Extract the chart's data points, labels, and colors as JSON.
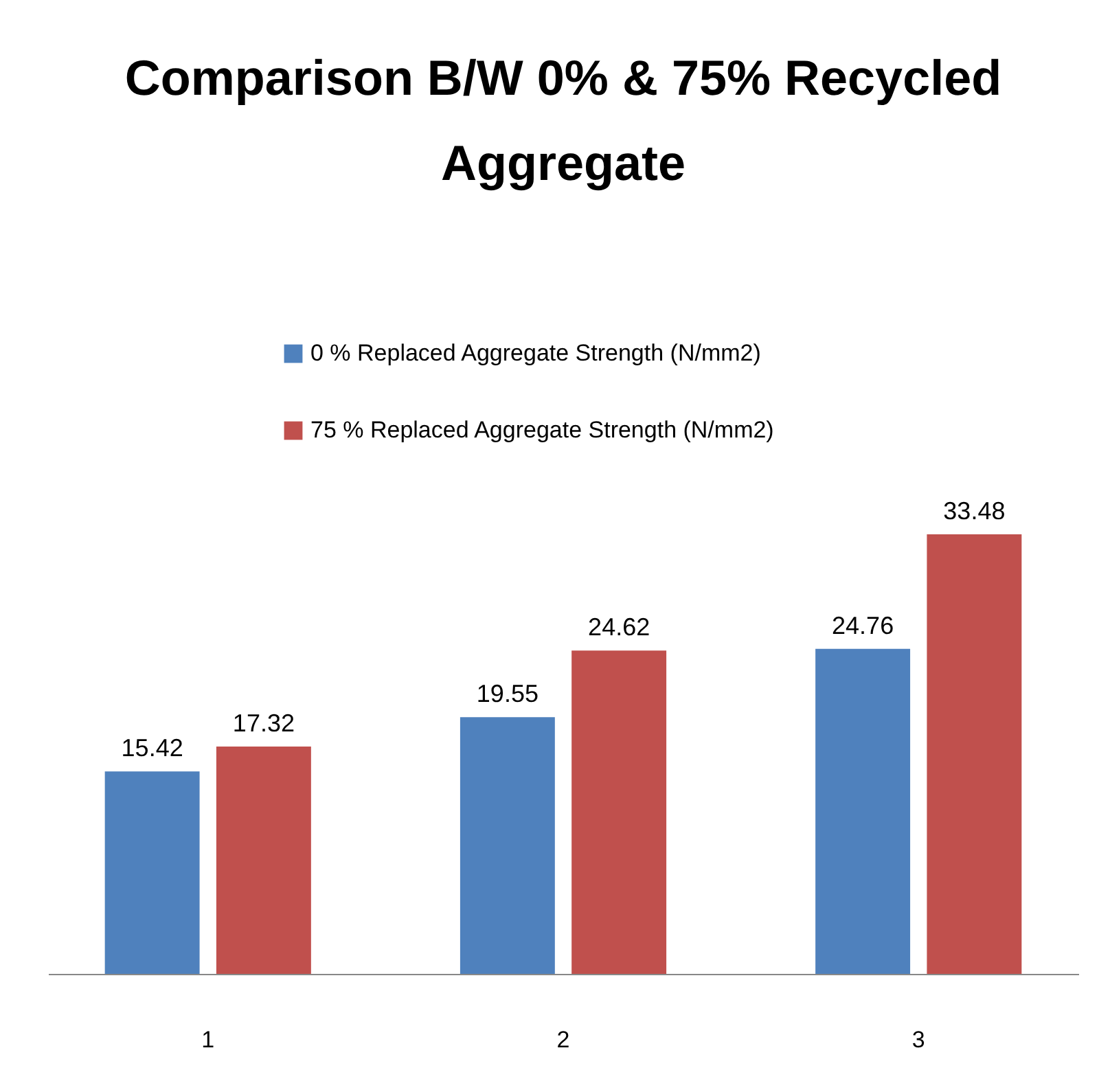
{
  "chart_data": {
    "type": "bar",
    "title": "Comparison B/W 0% & 75% Recycled Aggregate",
    "categories": [
      "1",
      "2",
      "3"
    ],
    "series": [
      {
        "name": "0 % Replaced Aggregate Strength (N/mm2)",
        "color": "#4f81bd",
        "values": [
          15.42,
          19.55,
          24.76
        ]
      },
      {
        "name": "75 % Replaced Aggregate Strength (N/mm2)",
        "color": "#c0504d",
        "values": [
          17.32,
          24.62,
          33.48
        ]
      }
    ],
    "data_labels": true,
    "legend": "top",
    "grid": false
  }
}
